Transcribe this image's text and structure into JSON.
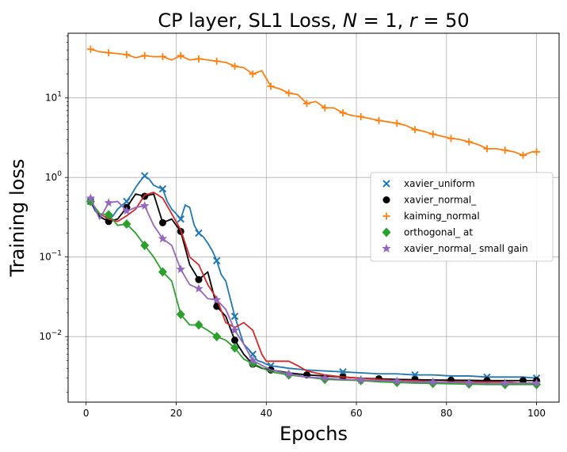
{
  "chart_data": {
    "type": "line",
    "title": "CP layer, SL1 Loss, N = 1, r = 50",
    "title_parts": {
      "prefix": "CP layer, SL1 Loss, ",
      "n_var": "N",
      "n_val": " = 1, ",
      "r_var": "r",
      "r_val": " = 50"
    },
    "xlabel": "Epochs",
    "ylabel": "Training  loss",
    "xlim": [
      -4,
      105
    ],
    "ylim": [
      0.0015,
      65
    ],
    "yscale": "log",
    "xticks": [
      0,
      20,
      40,
      60,
      80,
      100
    ],
    "xtick_labels": [
      "0",
      "20",
      "40",
      "60",
      "80",
      "100"
    ],
    "yticks": [
      0.01,
      0.1,
      1,
      10
    ],
    "ytick_labels": [
      {
        "base": "10",
        "exp": "−2"
      },
      {
        "base": "10",
        "exp": "−1"
      },
      {
        "base": "10",
        "exp": "0"
      },
      {
        "base": "10",
        "exp": "1"
      }
    ],
    "grid": true,
    "legend_position": "center-right",
    "series": [
      {
        "name": "xavier_uniform",
        "color": "#1f77b4",
        "marker": "x",
        "x": [
          1,
          2,
          3,
          4,
          5,
          6,
          7,
          8,
          9,
          10,
          11,
          12,
          13,
          14,
          15,
          16,
          17,
          18,
          19,
          20,
          21,
          22,
          23,
          24,
          25,
          26,
          27,
          28,
          29,
          30,
          31,
          32,
          33,
          34,
          35,
          36,
          37,
          38,
          39,
          40,
          41,
          45,
          49,
          53,
          57,
          61,
          65,
          69,
          73,
          77,
          81,
          85,
          89,
          93,
          97,
          100
        ],
        "y": [
          0.5,
          0.38,
          0.33,
          0.3,
          0.3,
          0.33,
          0.4,
          0.45,
          0.5,
          0.6,
          0.75,
          0.9,
          1.05,
          0.95,
          0.8,
          0.75,
          0.72,
          0.5,
          0.4,
          0.35,
          0.3,
          0.45,
          0.42,
          0.25,
          0.2,
          0.18,
          0.15,
          0.12,
          0.09,
          0.06,
          0.05,
          0.03,
          0.018,
          0.012,
          0.008,
          0.007,
          0.006,
          0.005,
          0.0048,
          0.0045,
          0.0043,
          0.004,
          0.0038,
          0.0037,
          0.0036,
          0.0035,
          0.0034,
          0.0034,
          0.0033,
          0.0033,
          0.0032,
          0.0032,
          0.0031,
          0.0031,
          0.0031,
          0.003
        ],
        "marker_every": 4
      },
      {
        "name": "xavier_normal_",
        "color": "#000000",
        "marker": "o",
        "x": [
          1,
          3,
          5,
          7,
          9,
          11,
          13,
          15,
          17,
          19,
          21,
          23,
          25,
          27,
          29,
          31,
          33,
          35,
          37,
          39,
          41,
          45,
          49,
          53,
          57,
          61,
          65,
          69,
          73,
          77,
          81,
          85,
          89,
          93,
          97,
          100
        ],
        "y": [
          0.5,
          0.32,
          0.28,
          0.3,
          0.42,
          0.62,
          0.58,
          0.62,
          0.27,
          0.3,
          0.21,
          0.08,
          0.052,
          0.065,
          0.024,
          0.018,
          0.009,
          0.006,
          0.0045,
          0.004,
          0.0038,
          0.0035,
          0.0033,
          0.0032,
          0.0031,
          0.003,
          0.00295,
          0.0029,
          0.00287,
          0.00285,
          0.00283,
          0.00282,
          0.0028,
          0.0028,
          0.0028,
          0.0028
        ],
        "marker_every": 2
      },
      {
        "name": "",
        "color": "#d62728",
        "marker": "none",
        "x": [
          1,
          3,
          5,
          7,
          9,
          11,
          13,
          15,
          17,
          19,
          21,
          23,
          25,
          27,
          29,
          31,
          33,
          35,
          37,
          39,
          40,
          41,
          43,
          45,
          47,
          49,
          53,
          57,
          61,
          65,
          69,
          73,
          77,
          81,
          85,
          89,
          93,
          97,
          100
        ],
        "y": [
          0.5,
          0.35,
          0.3,
          0.28,
          0.33,
          0.4,
          0.6,
          0.65,
          0.55,
          0.35,
          0.22,
          0.1,
          0.08,
          0.045,
          0.03,
          0.015,
          0.013,
          0.015,
          0.012,
          0.006,
          0.0049,
          0.0049,
          0.0049,
          0.0049,
          0.0043,
          0.0037,
          0.0033,
          0.0031,
          0.003,
          0.0029,
          0.0028,
          0.0028,
          0.0027,
          0.0027,
          0.0027,
          0.0027,
          0.0027,
          0.0026,
          0.0026
        ],
        "marker_every": 0
      },
      {
        "name": "kaiming_normal",
        "color": "#ff7f0e",
        "marker": "+",
        "x": [
          1,
          3,
          5,
          7,
          9,
          11,
          13,
          15,
          17,
          19,
          21,
          23,
          25,
          27,
          29,
          31,
          33,
          35,
          37,
          39,
          41,
          43,
          45,
          47,
          49,
          51,
          53,
          55,
          57,
          59,
          61,
          63,
          65,
          67,
          69,
          71,
          73,
          75,
          77,
          79,
          81,
          83,
          85,
          87,
          89,
          91,
          93,
          95,
          97,
          99,
          100
        ],
        "y": [
          41,
          38,
          37,
          36,
          35,
          32,
          34,
          33,
          33,
          30,
          34,
          30,
          31,
          30,
          29,
          28,
          25,
          24,
          20,
          22,
          14,
          13,
          11.5,
          11,
          8.5,
          9,
          7.5,
          7.5,
          6.5,
          6,
          5.8,
          5.5,
          5.2,
          5,
          4.8,
          4.5,
          4,
          3.8,
          3.5,
          3.3,
          3.1,
          3,
          2.8,
          2.6,
          2.3,
          2.3,
          2.2,
          2.1,
          1.9,
          2.1,
          2.1
        ],
        "marker_every": 2
      },
      {
        "name": "orthogonal_ at",
        "color": "#2ca02c",
        "marker": "D",
        "x": [
          1,
          3,
          5,
          7,
          9,
          11,
          13,
          15,
          17,
          19,
          21,
          23,
          25,
          27,
          29,
          31,
          33,
          35,
          37,
          41,
          45,
          49,
          53,
          57,
          61,
          65,
          69,
          73,
          77,
          81,
          85,
          89,
          93,
          97,
          100
        ],
        "y": [
          0.5,
          0.35,
          0.34,
          0.25,
          0.26,
          0.2,
          0.14,
          0.1,
          0.065,
          0.05,
          0.019,
          0.014,
          0.014,
          0.012,
          0.01,
          0.009,
          0.0072,
          0.0052,
          0.0046,
          0.0036,
          0.0033,
          0.0031,
          0.0029,
          0.00285,
          0.0028,
          0.0027,
          0.00265,
          0.0026,
          0.00258,
          0.00255,
          0.00253,
          0.0025,
          0.0025,
          0.0025,
          0.0025
        ],
        "marker_every": 2
      },
      {
        "name": "xavier_normal_ small gain",
        "color": "#9467bd",
        "marker": "*",
        "x": [
          1,
          3,
          5,
          7,
          9,
          11,
          13,
          15,
          17,
          19,
          21,
          23,
          25,
          27,
          29,
          31,
          33,
          35,
          37,
          41,
          45,
          49,
          53,
          57,
          61,
          65,
          69,
          73,
          77,
          81,
          85,
          89,
          93,
          97,
          100
        ],
        "y": [
          0.55,
          0.3,
          0.48,
          0.5,
          0.38,
          0.42,
          0.44,
          0.25,
          0.17,
          0.14,
          0.07,
          0.045,
          0.04,
          0.03,
          0.029,
          0.022,
          0.012,
          0.008,
          0.005,
          0.0038,
          0.0034,
          0.0031,
          0.003,
          0.0029,
          0.00285,
          0.0028,
          0.00275,
          0.0027,
          0.00268,
          0.00265,
          0.00262,
          0.0026,
          0.0026,
          0.0026,
          0.0026
        ],
        "marker_every": 2
      }
    ]
  }
}
